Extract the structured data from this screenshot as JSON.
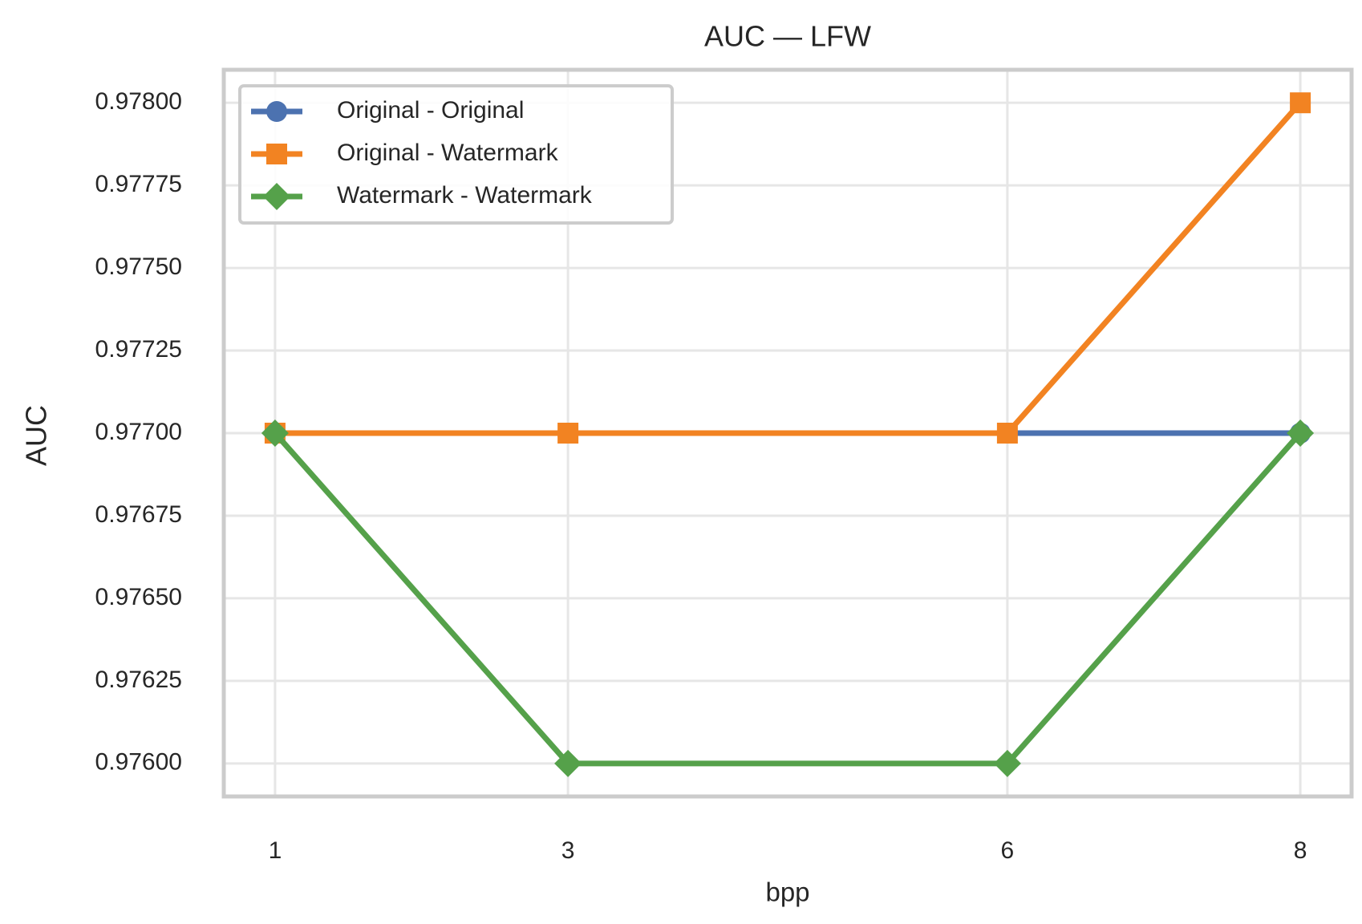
{
  "chart_data": {
    "type": "line",
    "title": "AUC — LFW",
    "xlabel": "bpp",
    "ylabel": "AUC",
    "x": [
      1,
      3,
      6,
      8
    ],
    "series": [
      {
        "name": "Original - Original",
        "color": "#4c72b0",
        "marker": "circle",
        "values": [
          0.977,
          0.977,
          0.977,
          0.977
        ]
      },
      {
        "name": "Original - Watermark",
        "color": "#f28322",
        "marker": "square",
        "values": [
          0.977,
          0.977,
          0.977,
          0.978
        ]
      },
      {
        "name": "Watermark - Watermark",
        "color": "#55a14a",
        "marker": "diamond",
        "values": [
          0.977,
          0.976,
          0.976,
          0.977
        ]
      }
    ],
    "xlim": [
      0.65,
      8.35
    ],
    "xticks": [
      1,
      3,
      6,
      8
    ],
    "ylim": [
      0.9759,
      0.9781
    ],
    "yticks": [
      {
        "value": 0.976,
        "label": "0.97600"
      },
      {
        "value": 0.97625,
        "label": "0.97625"
      },
      {
        "value": 0.9765,
        "label": "0.97650"
      },
      {
        "value": 0.97675,
        "label": "0.97675"
      },
      {
        "value": 0.977,
        "label": "0.97700"
      },
      {
        "value": 0.97725,
        "label": "0.97725"
      },
      {
        "value": 0.9775,
        "label": "0.97750"
      },
      {
        "value": 0.97775,
        "label": "0.97775"
      },
      {
        "value": 0.978,
        "label": "0.97800"
      }
    ],
    "grid": true,
    "legend": "upper left"
  }
}
